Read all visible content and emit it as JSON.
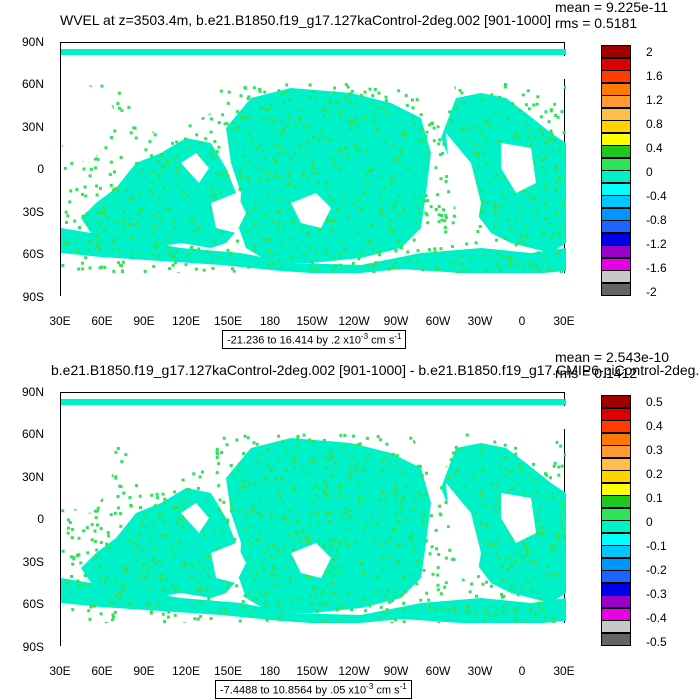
{
  "panels": [
    {
      "title": "WVEL at z=3503.4m, b.e21.B1850.f19_g17.127kaControl-2deg.002 [901-1000]",
      "stat_mean": "mean = 9.225e-11",
      "stat_rms": "rms = 0.5181",
      "range_text": "-21.236 to 16.414 by .2 x10",
      "range_exp": "-3",
      "range_unit": " cm s",
      "range_unit_exp": "-1",
      "colorbar_labels": [
        "2",
        "1.6",
        "1.2",
        "0.8",
        "0.4",
        "0",
        "-0.4",
        "-0.8",
        "-1.2",
        "-1.6",
        "-2"
      ]
    },
    {
      "title": "b.e21.B1850.f19_g17.127kaControl-2deg.002 [901-1000] - b.e21.B1850.f19_g17.CMIP6-piControl-2deg.",
      "stat_mean": "mean = 2.543e-10",
      "stat_rms": "rms = 0.1412",
      "range_text": "-7.4488 to 10.8564 by .05 x10",
      "range_exp": "-3",
      "range_unit": " cm s",
      "range_unit_exp": "-1",
      "colorbar_labels": [
        "0.5",
        "0.4",
        "0.3",
        "0.2",
        "0.1",
        "0",
        "-0.1",
        "-0.2",
        "-0.3",
        "-0.4",
        "-0.5"
      ]
    }
  ],
  "y_axis_labels": [
    "90N",
    "60N",
    "30N",
    "0",
    "30S",
    "60S",
    "90S"
  ],
  "x_axis_labels": [
    "30E",
    "60E",
    "90E",
    "120E",
    "150E",
    "180",
    "150W",
    "120W",
    "90W",
    "60W",
    "30W",
    "0",
    "30E"
  ],
  "colorbar_colors": [
    "#a00000",
    "#dd0000",
    "#ff3c00",
    "#ff7800",
    "#ff9b37",
    "#ffbe4b",
    "#ffd200",
    "#ffff00",
    "#1ec81e",
    "#32e15a",
    "#00f0c8",
    "#00ffff",
    "#00c8ff",
    "#0096ff",
    "#1e64ff",
    "#0000e6",
    "#9b00c8",
    "#e600e6",
    "#c8c8c8",
    "#646464"
  ],
  "ocean_color_main": "#00f0c8",
  "ocean_color_alt": "#32e15a"
}
